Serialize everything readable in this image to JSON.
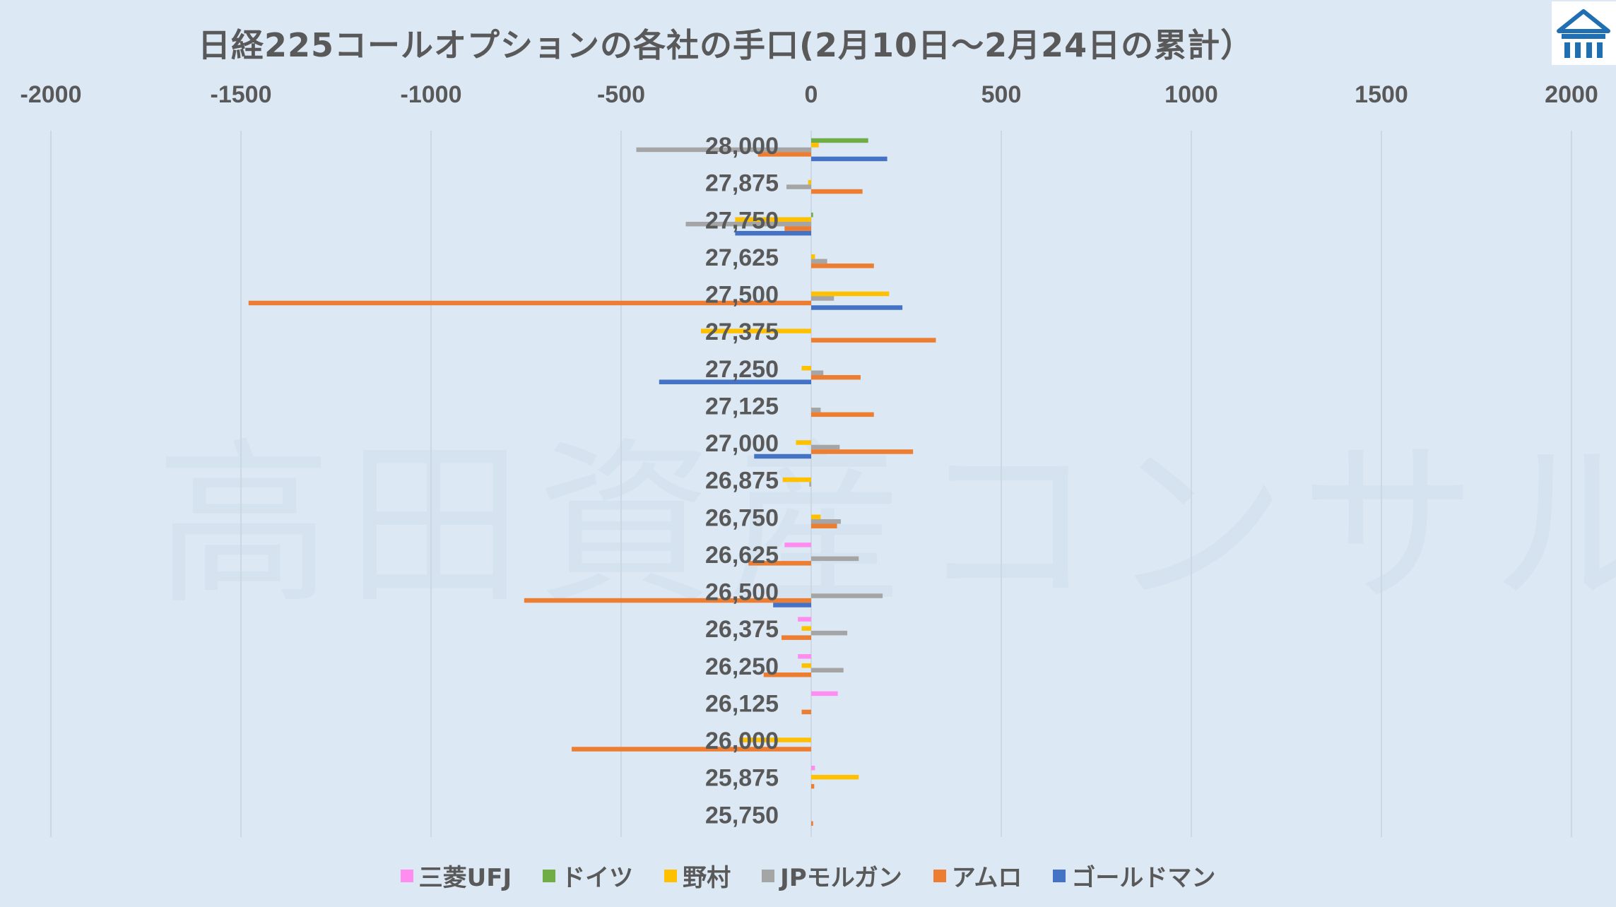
{
  "title": "日経225コールオプションの各社の手口(2月10日～2月24日の累計）",
  "watermark": "高田資産コンサル",
  "chart_data": {
    "type": "bar",
    "orientation": "horizontal",
    "title": "日経225コールオプションの各社の手口(2月10日～2月24日の累計）",
    "xlim": [
      -2000,
      2000
    ],
    "x_ticks": [
      -2000,
      -1500,
      -1000,
      -500,
      0,
      500,
      1000,
      1500,
      2000
    ],
    "x_axis_position": "top",
    "grid": true,
    "legend_position": "bottom",
    "categories": [
      "28,000",
      "27,875",
      "27,750",
      "27,625",
      "27,500",
      "27,375",
      "27,250",
      "27,125",
      "27,000",
      "26,875",
      "26,750",
      "26,625",
      "26,500",
      "26,375",
      "26,250",
      "26,125",
      "26,000",
      "25,875",
      "25,750"
    ],
    "series": [
      {
        "name": "三菱UFJ",
        "color": "#ff8cf0",
        "values": [
          0,
          0,
          0,
          0,
          0,
          0,
          0,
          0,
          0,
          0,
          0,
          -70,
          0,
          -35,
          -35,
          70,
          0,
          10,
          0
        ]
      },
      {
        "name": "ドイツ",
        "color": "#70ad47",
        "values": [
          150,
          0,
          5,
          0,
          0,
          0,
          0,
          0,
          0,
          0,
          0,
          0,
          0,
          0,
          0,
          0,
          0,
          0,
          0
        ]
      },
      {
        "name": "野村",
        "color": "#ffc000",
        "values": [
          20,
          -8,
          -200,
          10,
          205,
          -290,
          -25,
          0,
          -40,
          -75,
          25,
          0,
          0,
          -25,
          -25,
          0,
          -190,
          125,
          0
        ]
      },
      {
        "name": "JPモルガン",
        "color": "#a5a5a5",
        "values": [
          -460,
          -65,
          -330,
          42,
          60,
          0,
          32,
          25,
          75,
          -5,
          78,
          125,
          188,
          95,
          85,
          0,
          0,
          0,
          0
        ]
      },
      {
        "name": "アムロ",
        "color": "#ed7d31",
        "values": [
          -140,
          135,
          -70,
          165,
          -1480,
          328,
          130,
          165,
          268,
          0,
          68,
          -165,
          -755,
          -78,
          -125,
          -25,
          -630,
          8,
          5
        ]
      },
      {
        "name": "ゴールドマン",
        "color": "#4472c4",
        "values": [
          200,
          0,
          -200,
          0,
          240,
          0,
          -400,
          0,
          -150,
          0,
          0,
          0,
          -100,
          0,
          0,
          0,
          0,
          0,
          0
        ]
      }
    ]
  }
}
